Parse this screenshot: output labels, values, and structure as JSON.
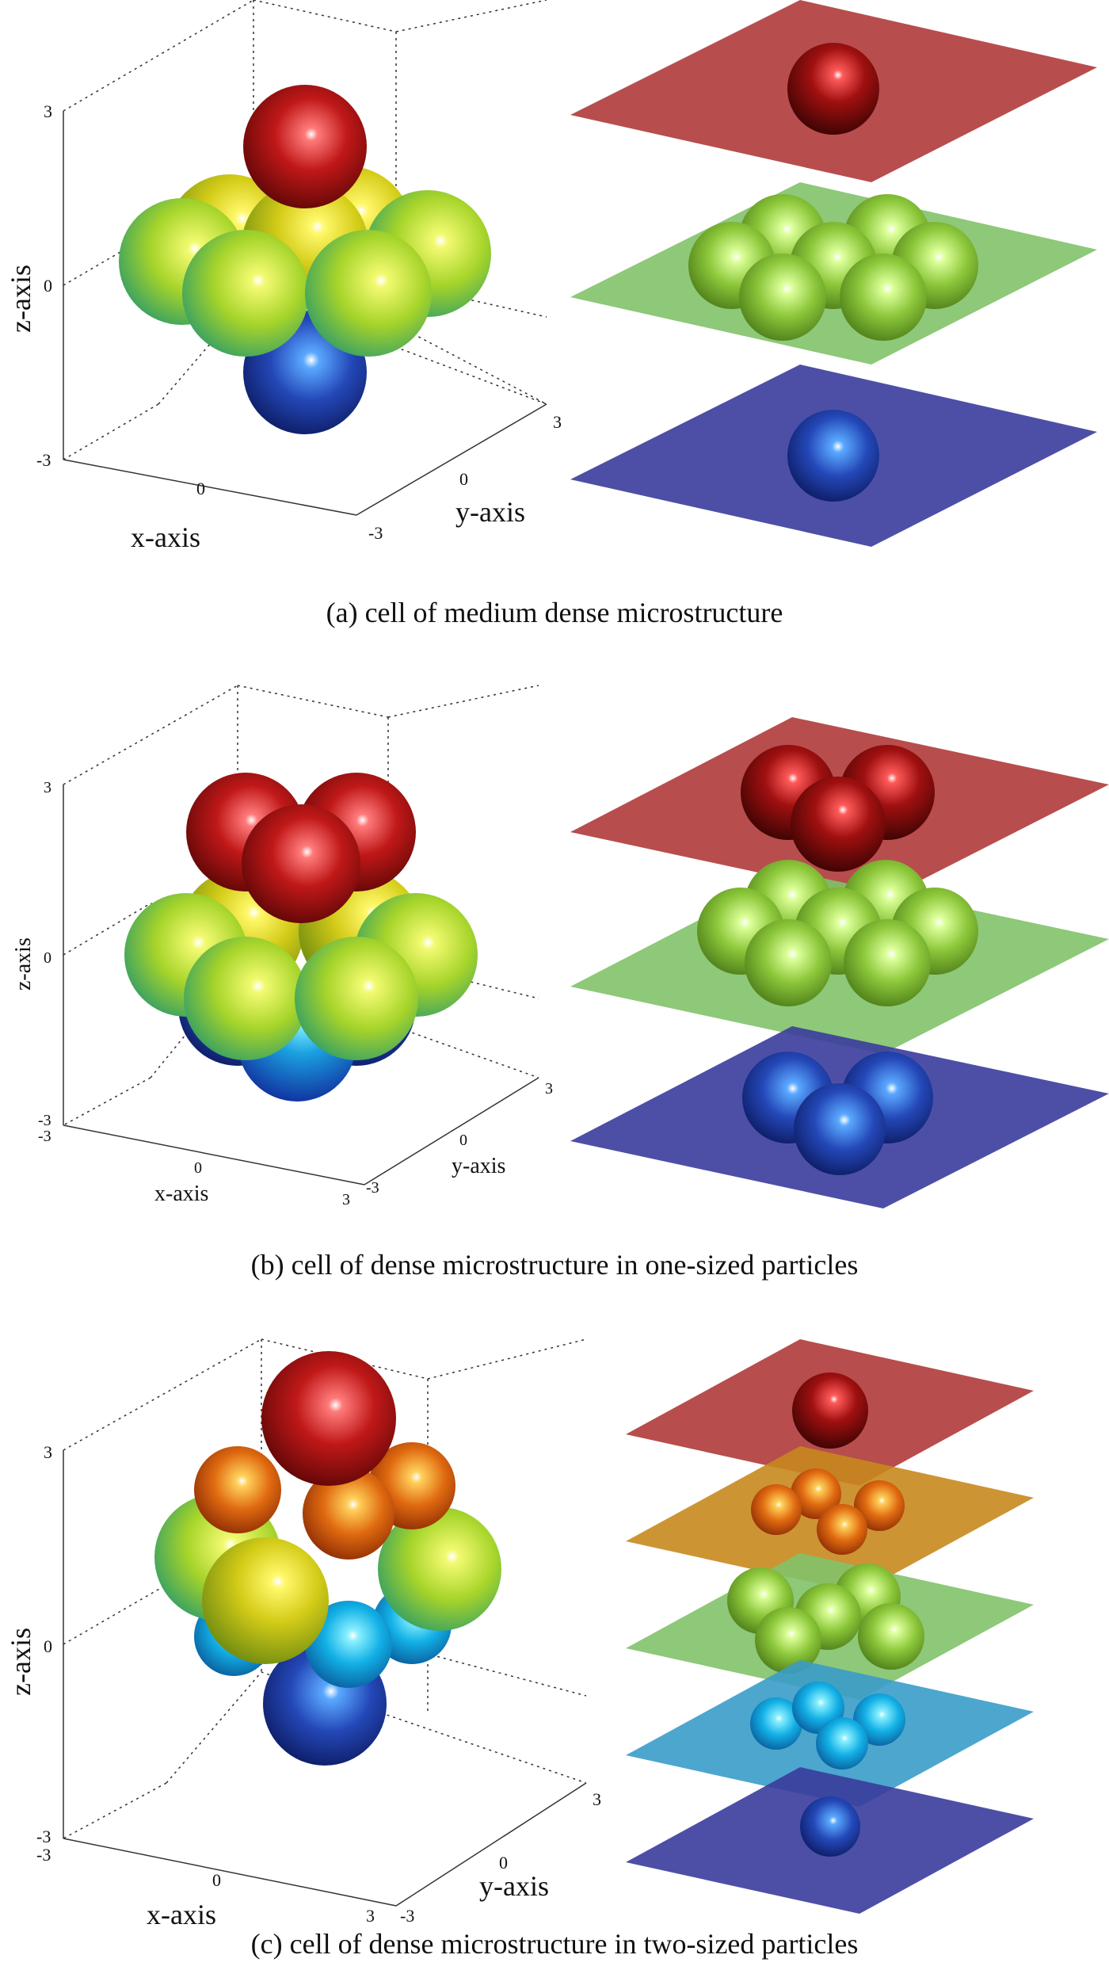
{
  "panels": [
    {
      "caption": "(a) cell of medium dense microstructure",
      "x_label": "x-axis",
      "y_label": "y-axis",
      "z_label": "z-axis",
      "x_ticks": [
        "0"
      ],
      "y_ticks": [
        "-3",
        "0",
        "3"
      ],
      "z_ticks": [
        "3",
        "0",
        "-3"
      ],
      "layers": [
        "red",
        "green",
        "blue"
      ]
    },
    {
      "caption": "(b) cell of dense microstructure in one-sized particles",
      "x_label": "x-axis",
      "y_label": "y-axis",
      "z_label": "z-axis",
      "x_ticks": [
        "-3",
        "0",
        "3"
      ],
      "y_ticks": [
        "-3",
        "0",
        "3"
      ],
      "z_ticks": [
        "3",
        "0",
        "-3"
      ],
      "layers": [
        "red",
        "green",
        "blue"
      ]
    },
    {
      "caption": "(c) cell of dense microstructure in two-sized particles",
      "x_label": "x-axis",
      "y_label": "y-axis",
      "z_label": "z-axis",
      "x_ticks": [
        "-3",
        "0",
        "3"
      ],
      "y_ticks": [
        "-3",
        "0",
        "3"
      ],
      "z_ticks": [
        "3",
        "0",
        "-3"
      ],
      "layers": [
        "red",
        "orange",
        "green",
        "cyan",
        "blue"
      ]
    }
  ],
  "colors": {
    "red": "#b51e1e",
    "orange": "#e07a10",
    "yellow": "#d8d61c",
    "green": "#8fd039",
    "cyan": "#17b8e0",
    "blue": "#2440a8",
    "plane_red": "#b03a3a",
    "plane_orange": "#c8881e",
    "plane_green": "#82c26a",
    "plane_cyan": "#3a9cc8",
    "plane_blue": "#3a3c9c"
  }
}
